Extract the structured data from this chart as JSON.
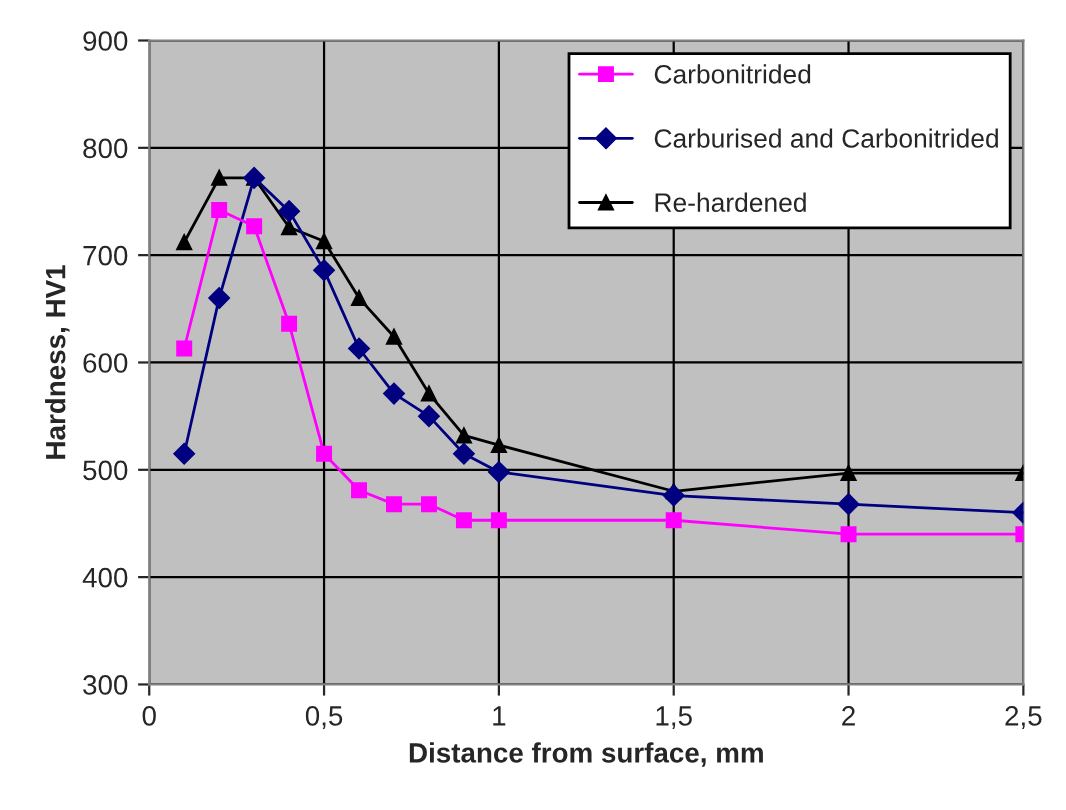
{
  "chart_data": {
    "type": "line",
    "xlabel": "Distance from surface, mm",
    "ylabel": "Hardness, HV1",
    "x": [
      0.1,
      0.2,
      0.3,
      0.4,
      0.5,
      0.6,
      0.7,
      0.8,
      0.9,
      1,
      1.5,
      2,
      2.5
    ],
    "series": [
      {
        "name": "Carbonitrided",
        "color": "#ff00ff",
        "marker": "square",
        "values": [
          613,
          742,
          727,
          636,
          515,
          481,
          468,
          468,
          453,
          453,
          453,
          440,
          440
        ]
      },
      {
        "name": "Carburised and Carbonitrided",
        "color": "#000080",
        "marker": "diamond",
        "values": [
          515,
          660,
          772,
          741,
          686,
          613,
          571,
          550,
          515,
          498,
          476,
          468,
          460
        ]
      },
      {
        "name": "Re-hardened",
        "color": "#000000",
        "marker": "triangle",
        "values": [
          712,
          772,
          772,
          726,
          713,
          660,
          624,
          571,
          532,
          523,
          480,
          497,
          497
        ]
      }
    ],
    "xlim": [
      0,
      2.5
    ],
    "ylim": [
      300,
      900
    ],
    "xticks": [
      0,
      {
        "value": 0.5,
        "label": "0,5"
      },
      1,
      {
        "value": 1.5,
        "label": "1,5"
      },
      2,
      {
        "value": 2.5,
        "label": "2,5"
      }
    ],
    "yticks": [
      300,
      400,
      500,
      600,
      700,
      800,
      900
    ],
    "grid": true,
    "legend": "top right",
    "line_style": "solid"
  }
}
